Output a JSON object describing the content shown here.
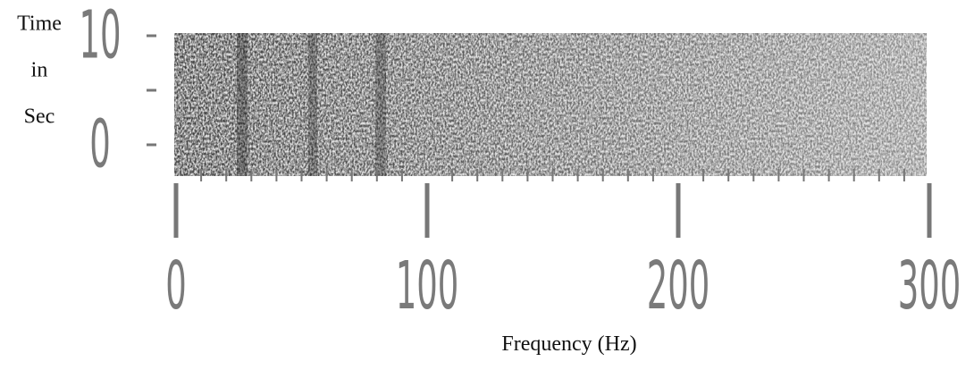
{
  "chart_data": {
    "type": "spectrogram",
    "ylabel": [
      "Time",
      "in",
      "Sec"
    ],
    "xlabel": "Frequency (Hz)",
    "xlim": [
      0,
      300
    ],
    "xticks": [
      0,
      100,
      200,
      300
    ],
    "xminorticks": [
      10,
      20,
      30,
      40,
      50,
      60,
      70,
      80,
      90,
      110,
      120,
      130,
      140,
      150,
      160,
      170,
      180,
      190,
      210,
      220,
      230,
      240,
      250,
      260,
      270,
      280,
      290
    ],
    "ylim": [
      0,
      10
    ],
    "yticks": [
      0,
      10
    ],
    "yminorticks": [
      5
    ]
  }
}
